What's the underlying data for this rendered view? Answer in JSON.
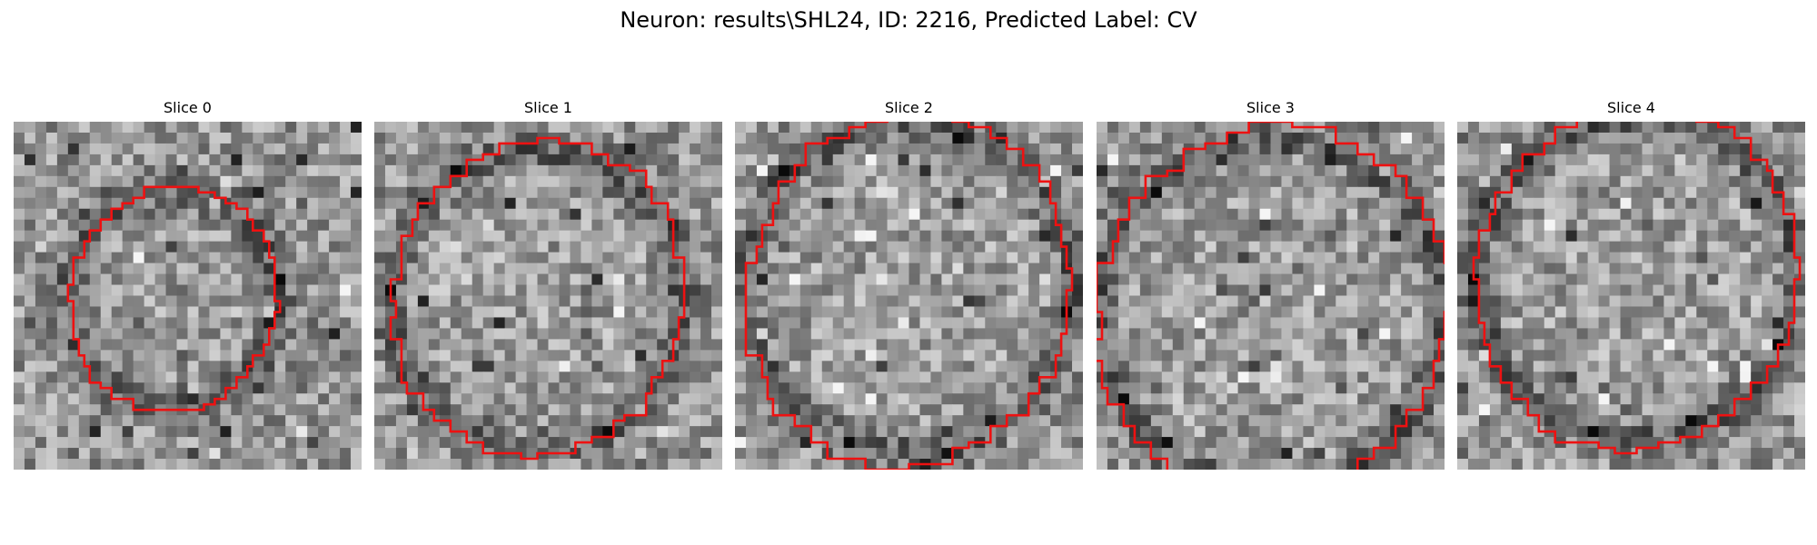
{
  "figure": {
    "title": "Neuron: results\\SHL24, ID: 2216, Predicted Label: CV",
    "contour_color": "#ee1111"
  },
  "panels": [
    {
      "title": "Slice 0",
      "contour_radius": 0.3,
      "center": [
        0.46,
        0.51
      ]
    },
    {
      "title": "Slice 1",
      "contour_radius": 0.42,
      "center": [
        0.47,
        0.51
      ]
    },
    {
      "title": "Slice 2",
      "contour_radius": 0.47,
      "center": [
        0.5,
        0.48
      ]
    },
    {
      "title": "Slice 3",
      "contour_radius": 0.5,
      "center": [
        0.5,
        0.55
      ]
    },
    {
      "title": "Slice 4",
      "contour_radius": 0.46,
      "center": [
        0.52,
        0.45
      ]
    }
  ]
}
